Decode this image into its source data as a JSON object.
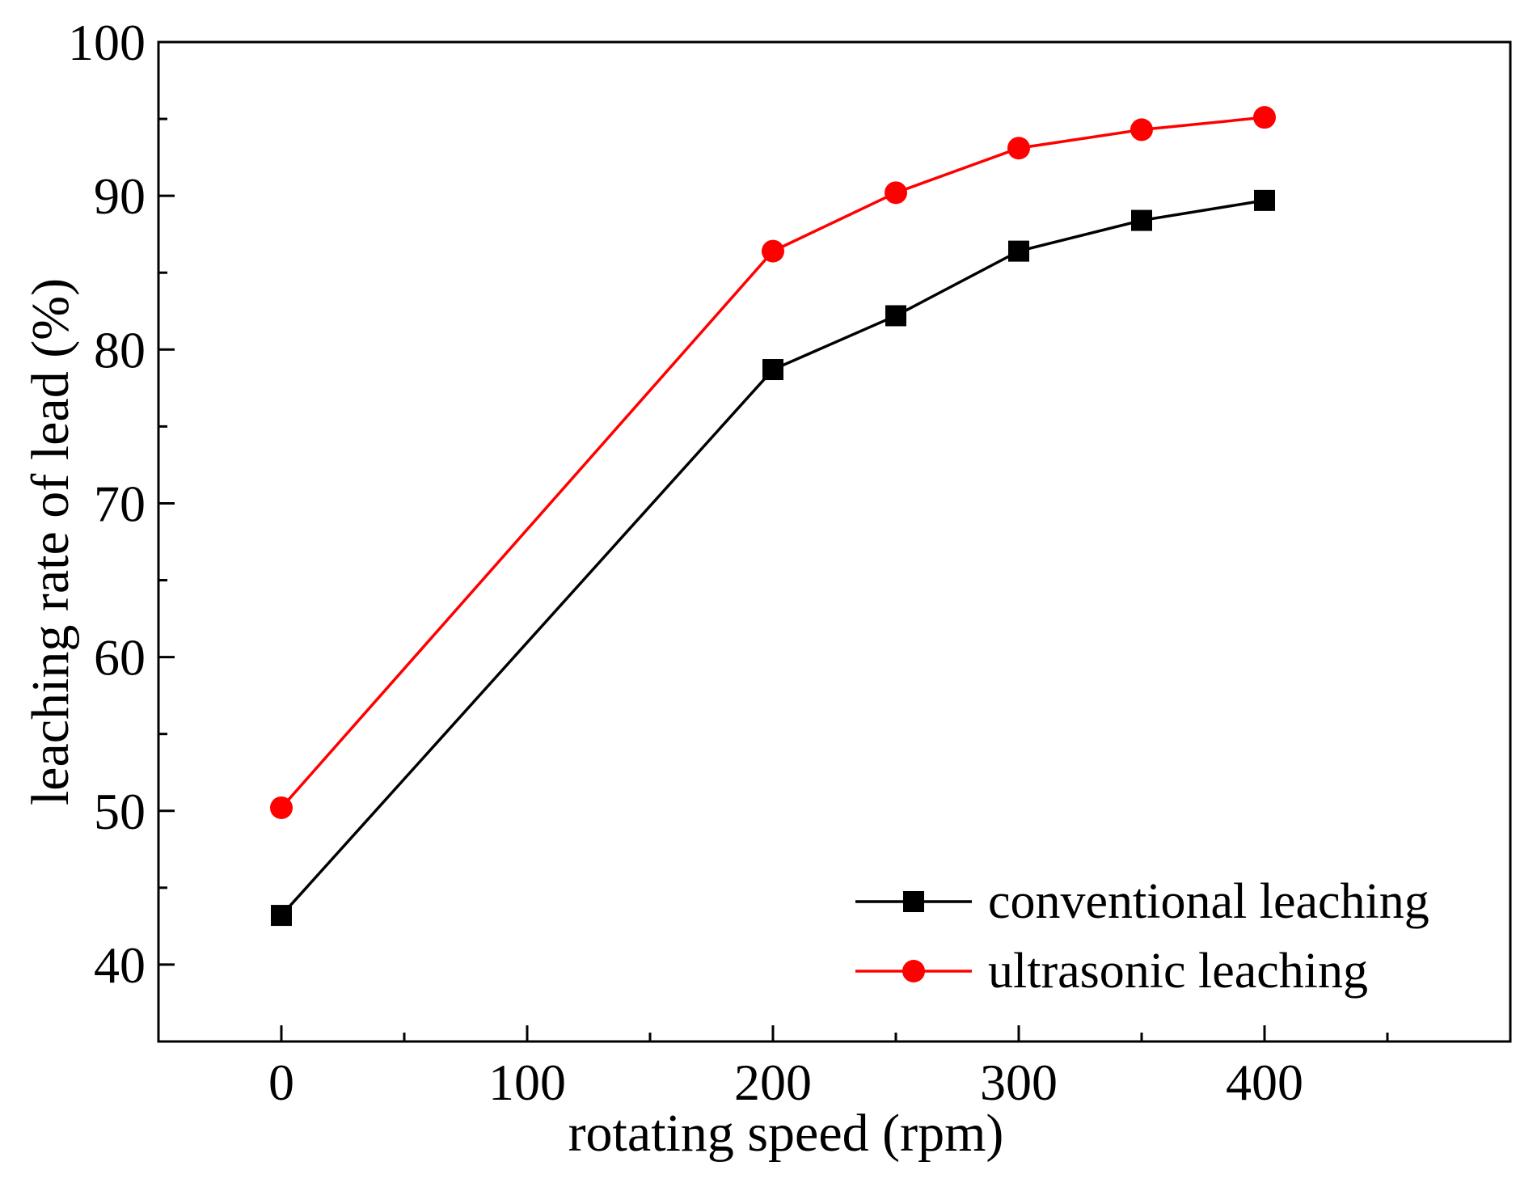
{
  "chart_data": {
    "type": "line",
    "title": "",
    "xlabel": "rotating speed (rpm)",
    "ylabel": "leaching rate of lead (%)",
    "xlim": [
      -50,
      500
    ],
    "ylim": [
      35,
      100
    ],
    "xticks": [
      0,
      100,
      200,
      300,
      400
    ],
    "xminor": [
      50,
      150,
      250,
      350,
      450
    ],
    "yticks": [
      40,
      50,
      60,
      70,
      80,
      90,
      100
    ],
    "yminor": [
      45,
      55,
      65,
      75,
      85,
      95
    ],
    "grid": false,
    "legend_position": "bottom-right",
    "x": [
      0,
      200,
      250,
      300,
      350,
      400
    ],
    "series": [
      {
        "name": "conventional leaching",
        "color": "#000000",
        "marker": "square",
        "values": [
          43.2,
          78.7,
          82.2,
          86.4,
          88.4,
          89.7
        ]
      },
      {
        "name": "ultrasonic leaching",
        "color": "#ff0000",
        "marker": "circle",
        "values": [
          50.2,
          86.4,
          90.2,
          93.1,
          94.3,
          95.1
        ]
      }
    ]
  }
}
